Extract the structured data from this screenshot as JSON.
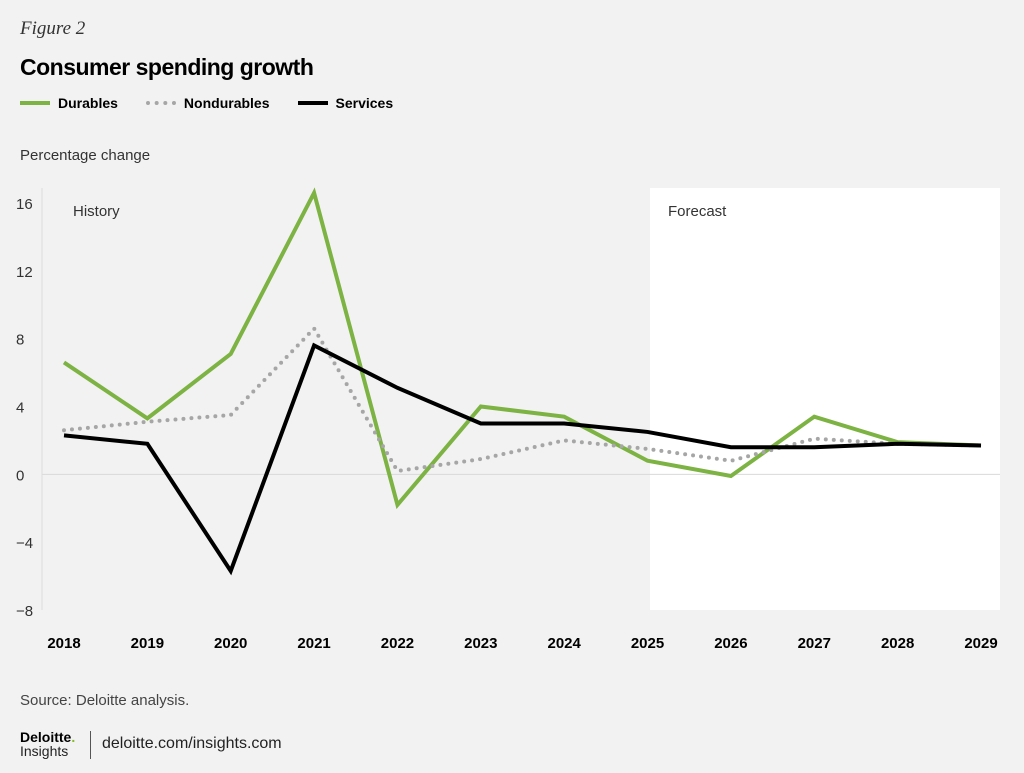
{
  "figure_label": "Figure 2",
  "footer": {
    "source": "Source: Deloitte analysis.",
    "logo_top": "Deloitte",
    "logo_bottom": "Insights",
    "url": "deloitte.com/insights.com"
  },
  "chart_data": {
    "type": "line",
    "title": "Consumer spending growth",
    "ylabel": "Percentage change",
    "xlabel": "",
    "categories": [
      "2018",
      "2019",
      "2020",
      "2021",
      "2022",
      "2023",
      "2024",
      "2025",
      "2026",
      "2027",
      "2028",
      "2029"
    ],
    "ylim": [
      -8,
      16
    ],
    "yticks": [
      "16",
      "12",
      "8",
      "4",
      "0",
      "−4",
      "−8"
    ],
    "ytick_values": [
      16,
      12,
      8,
      4,
      0,
      -4,
      -8
    ],
    "legend_position": "top-left",
    "grid": false,
    "annotations": {
      "history": "History",
      "forecast": "Forecast",
      "forecast_start": "2025"
    },
    "series": [
      {
        "name": "Durables",
        "color": "#7cb342",
        "style": "solid",
        "values": [
          6.6,
          3.3,
          7.1,
          16.6,
          -1.8,
          4.0,
          3.4,
          0.8,
          -0.1,
          3.4,
          1.9,
          1.7
        ]
      },
      {
        "name": "Nondurables",
        "color": "#a6a6a6",
        "style": "dotted",
        "values": [
          2.6,
          3.1,
          3.5,
          8.6,
          0.2,
          0.9,
          2.0,
          1.5,
          0.8,
          2.1,
          1.8,
          1.7
        ]
      },
      {
        "name": "Services",
        "color": "#000000",
        "style": "solid",
        "values": [
          2.3,
          1.8,
          -5.7,
          7.6,
          5.1,
          3.0,
          3.0,
          2.5,
          1.6,
          1.6,
          1.8,
          1.7
        ]
      }
    ]
  }
}
